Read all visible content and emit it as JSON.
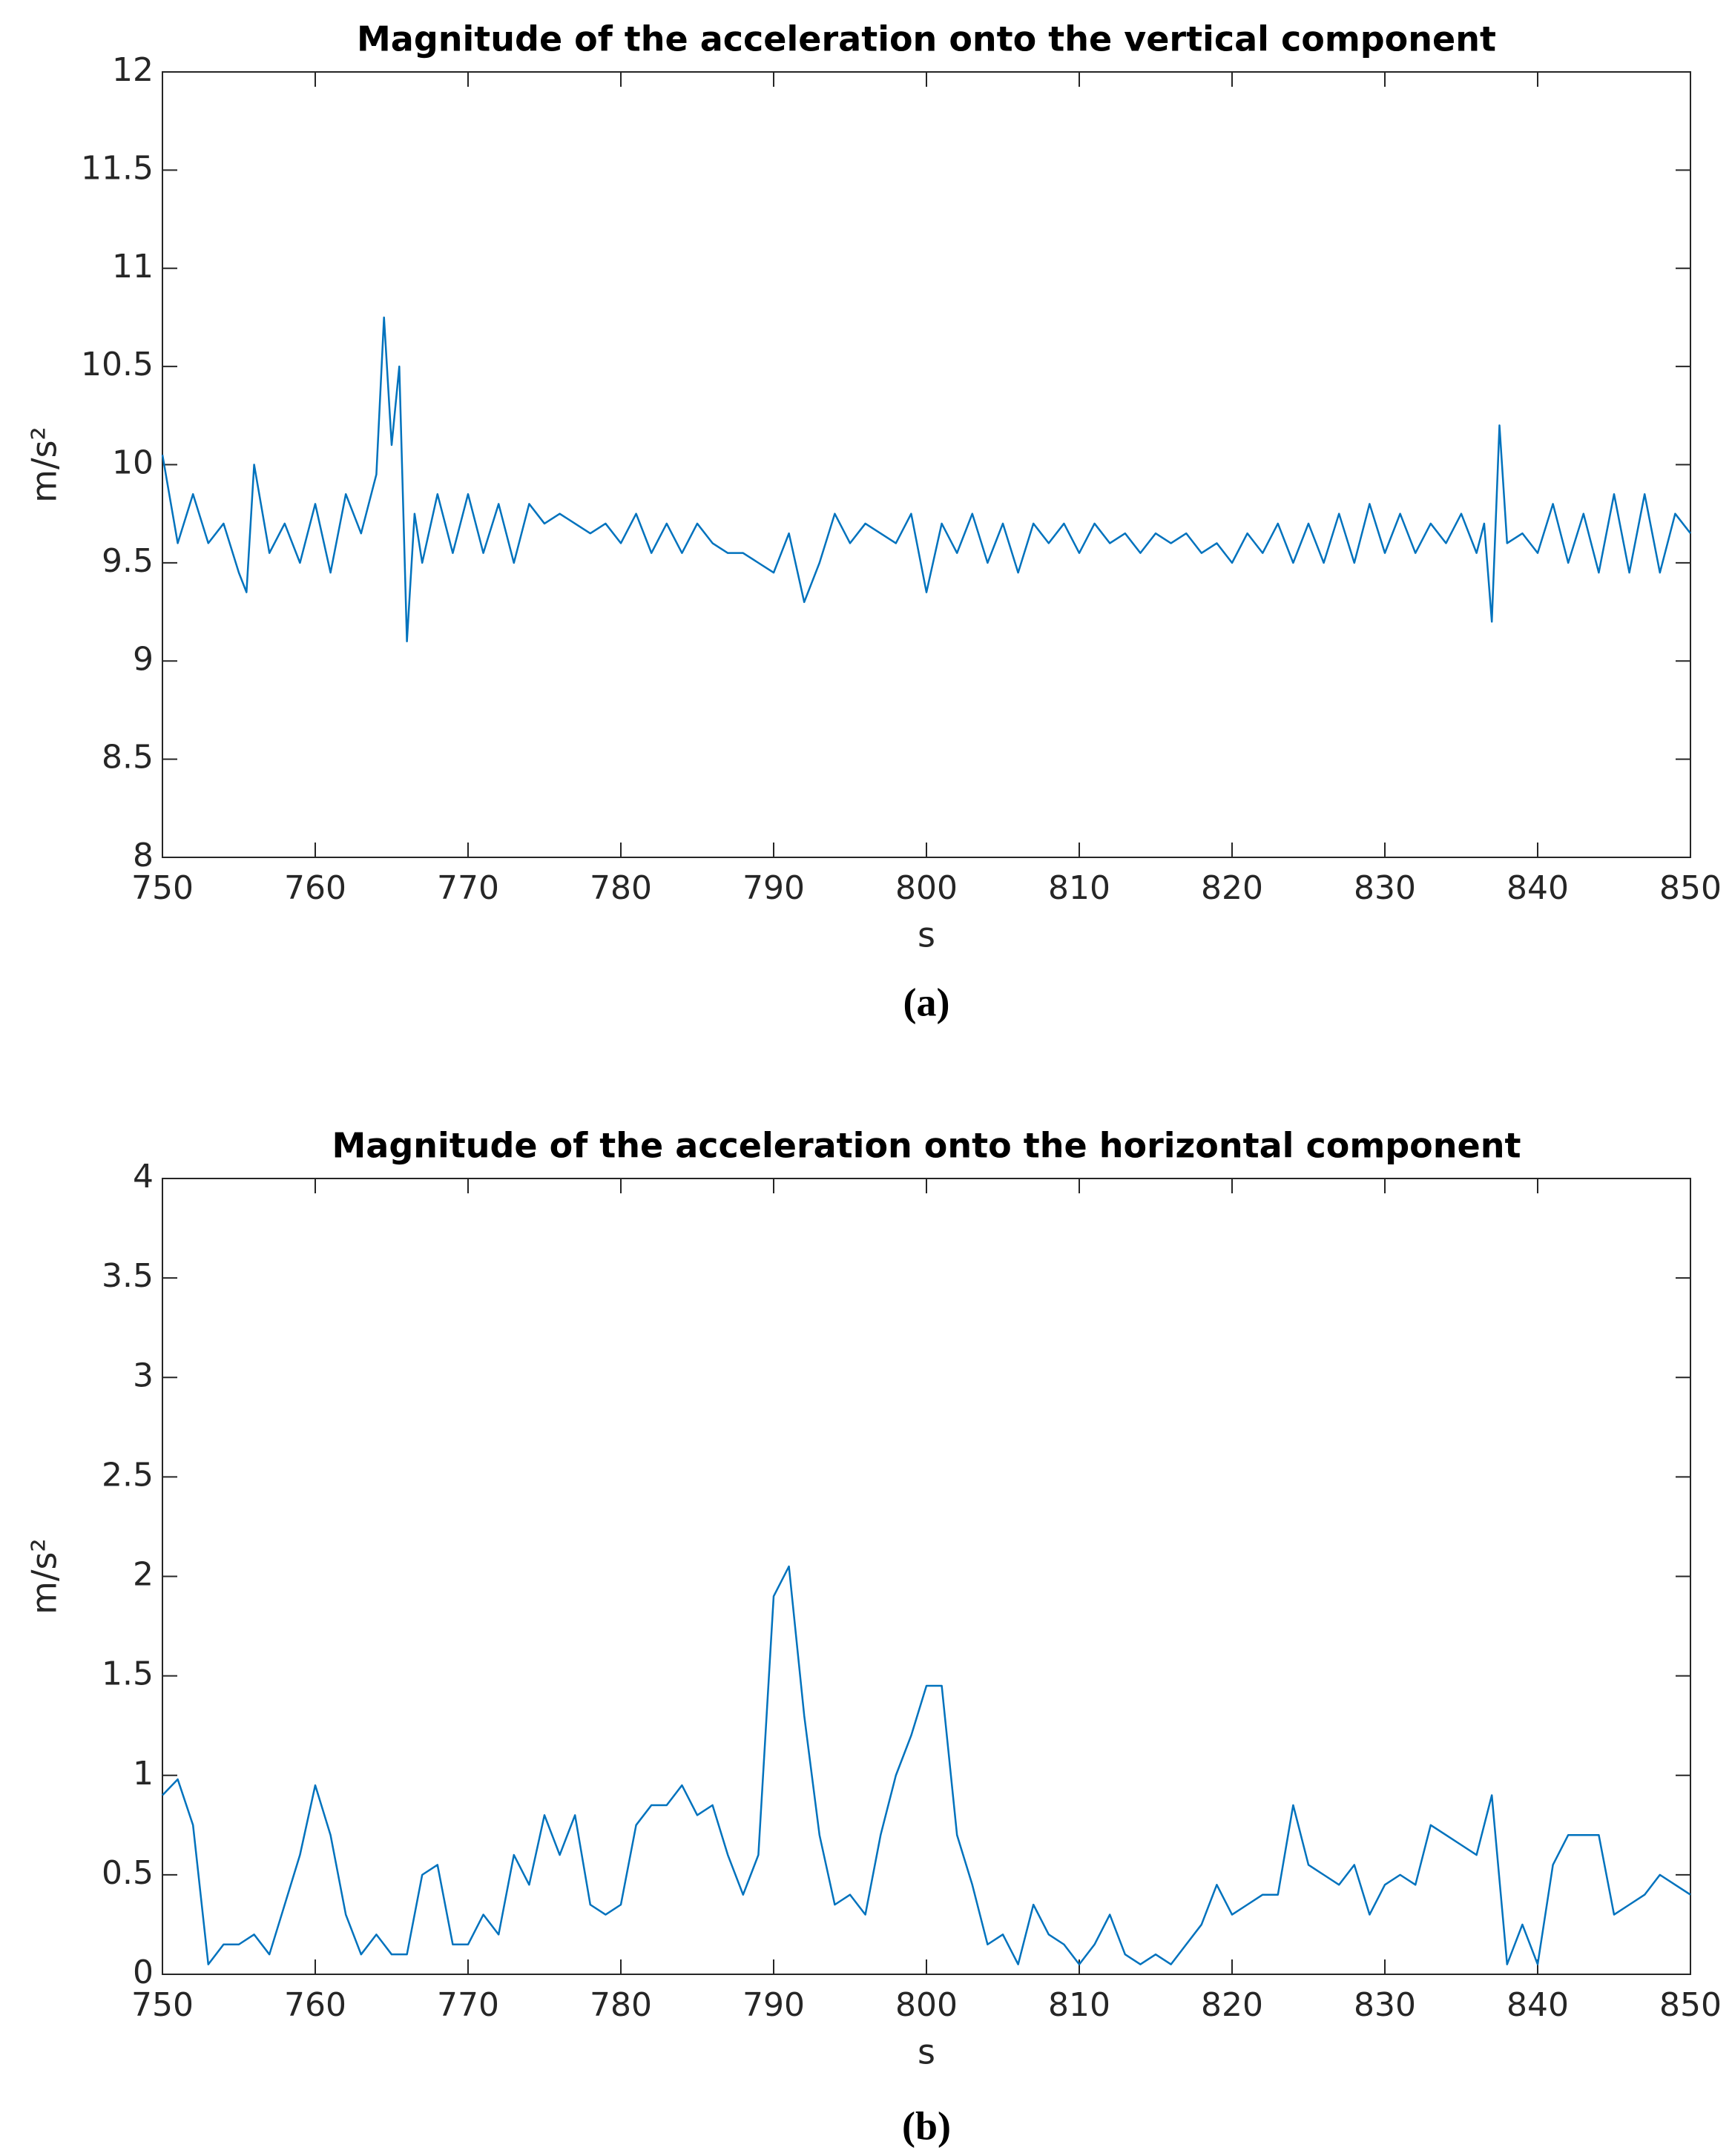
{
  "chart_data": [
    {
      "type": "line",
      "title": "Magnitude of the acceleration onto the vertical component",
      "xlabel": "s",
      "ylabel": "m/s²",
      "caption": "(a)",
      "xlim": [
        750,
        850
      ],
      "xticks": [
        750,
        760,
        770,
        780,
        790,
        800,
        810,
        820,
        830,
        840,
        850
      ],
      "ylim": [
        8,
        12
      ],
      "yticks": [
        8,
        8.5,
        9,
        9.5,
        10,
        10.5,
        11,
        11.5,
        12
      ],
      "grid": false,
      "series": [
        {
          "color": "#0072bd",
          "x": [
            750,
            751,
            752,
            753,
            754,
            755,
            755.5,
            756,
            757,
            758,
            759,
            760,
            761,
            762,
            763,
            764,
            764.5,
            765,
            765.5,
            766,
            766.5,
            767,
            768,
            769,
            770,
            771,
            772,
            773,
            774,
            775,
            776,
            777,
            778,
            779,
            780,
            781,
            782,
            783,
            784,
            785,
            786,
            787,
            788,
            789,
            790,
            791,
            792,
            793,
            794,
            795,
            796,
            797,
            798,
            799,
            800,
            801,
            802,
            803,
            804,
            805,
            806,
            807,
            808,
            809,
            810,
            811,
            812,
            813,
            814,
            815,
            816,
            817,
            818,
            819,
            820,
            821,
            822,
            823,
            824,
            825,
            826,
            827,
            828,
            829,
            830,
            831,
            832,
            833,
            834,
            835,
            836,
            836.5,
            837,
            837.5,
            838,
            839,
            840,
            841,
            842,
            843,
            844,
            845,
            846,
            847,
            848,
            849,
            850
          ],
          "values": [
            10.05,
            9.6,
            9.85,
            9.6,
            9.7,
            9.45,
            9.35,
            10.0,
            9.55,
            9.7,
            9.5,
            9.8,
            9.45,
            9.85,
            9.65,
            9.95,
            10.75,
            10.1,
            10.5,
            9.1,
            9.75,
            9.5,
            9.85,
            9.55,
            9.85,
            9.55,
            9.8,
            9.5,
            9.8,
            9.7,
            9.75,
            9.7,
            9.65,
            9.7,
            9.6,
            9.75,
            9.55,
            9.7,
            9.55,
            9.7,
            9.6,
            9.55,
            9.55,
            9.5,
            9.45,
            9.65,
            9.3,
            9.5,
            9.75,
            9.6,
            9.7,
            9.65,
            9.6,
            9.75,
            9.35,
            9.7,
            9.55,
            9.75,
            9.5,
            9.7,
            9.45,
            9.7,
            9.6,
            9.7,
            9.55,
            9.7,
            9.6,
            9.65,
            9.55,
            9.65,
            9.6,
            9.65,
            9.55,
            9.6,
            9.5,
            9.65,
            9.55,
            9.7,
            9.5,
            9.7,
            9.5,
            9.75,
            9.5,
            9.8,
            9.55,
            9.75,
            9.55,
            9.7,
            9.6,
            9.75,
            9.55,
            9.7,
            9.2,
            10.2,
            9.6,
            9.65,
            9.55,
            9.8,
            9.5,
            9.75,
            9.45,
            9.85,
            9.45,
            9.85,
            9.45,
            9.75,
            9.65
          ]
        }
      ]
    },
    {
      "type": "line",
      "title": "Magnitude of the acceleration onto the horizontal component",
      "xlabel": "s",
      "ylabel": "m/s²",
      "caption": "(b)",
      "xlim": [
        750,
        850
      ],
      "xticks": [
        750,
        760,
        770,
        780,
        790,
        800,
        810,
        820,
        830,
        840,
        850
      ],
      "ylim": [
        0,
        4
      ],
      "yticks": [
        0,
        0.5,
        1,
        1.5,
        2,
        2.5,
        3,
        3.5,
        4
      ],
      "grid": false,
      "series": [
        {
          "color": "#0072bd",
          "x": [
            750,
            751,
            752,
            753,
            754,
            755,
            756,
            757,
            758,
            759,
            760,
            761,
            762,
            763,
            764,
            765,
            766,
            767,
            768,
            769,
            770,
            771,
            772,
            773,
            774,
            775,
            776,
            777,
            778,
            779,
            780,
            781,
            782,
            783,
            784,
            785,
            786,
            787,
            788,
            789,
            790,
            791,
            792,
            793,
            794,
            795,
            796,
            797,
            798,
            799,
            800,
            801,
            802,
            803,
            804,
            805,
            806,
            807,
            808,
            809,
            810,
            811,
            812,
            813,
            814,
            815,
            816,
            817,
            818,
            819,
            820,
            821,
            822,
            823,
            824,
            825,
            826,
            827,
            828,
            829,
            830,
            831,
            832,
            833,
            834,
            835,
            836,
            837,
            838,
            839,
            840,
            841,
            842,
            843,
            844,
            845,
            846,
            847,
            848,
            849,
            850
          ],
          "values": [
            0.9,
            0.98,
            0.75,
            0.05,
            0.15,
            0.15,
            0.2,
            0.1,
            0.35,
            0.6,
            0.95,
            0.7,
            0.3,
            0.1,
            0.2,
            0.1,
            0.1,
            0.5,
            0.55,
            0.15,
            0.15,
            0.3,
            0.2,
            0.6,
            0.45,
            0.8,
            0.6,
            0.8,
            0.35,
            0.3,
            0.35,
            0.75,
            0.85,
            0.85,
            0.95,
            0.8,
            0.85,
            0.6,
            0.4,
            0.6,
            1.9,
            2.05,
            1.3,
            0.7,
            0.35,
            0.4,
            0.3,
            0.7,
            1.0,
            1.2,
            1.45,
            1.45,
            0.7,
            0.45,
            0.15,
            0.2,
            0.05,
            0.35,
            0.2,
            0.15,
            0.05,
            0.15,
            0.3,
            0.1,
            0.05,
            0.1,
            0.05,
            0.15,
            0.25,
            0.45,
            0.3,
            0.35,
            0.4,
            0.4,
            0.85,
            0.55,
            0.5,
            0.45,
            0.55,
            0.3,
            0.45,
            0.5,
            0.45,
            0.75,
            0.7,
            0.65,
            0.6,
            0.9,
            0.05,
            0.25,
            0.05,
            0.55,
            0.7,
            0.7,
            0.7,
            0.3,
            0.35,
            0.4,
            0.5,
            0.45,
            0.4
          ]
        }
      ]
    }
  ]
}
